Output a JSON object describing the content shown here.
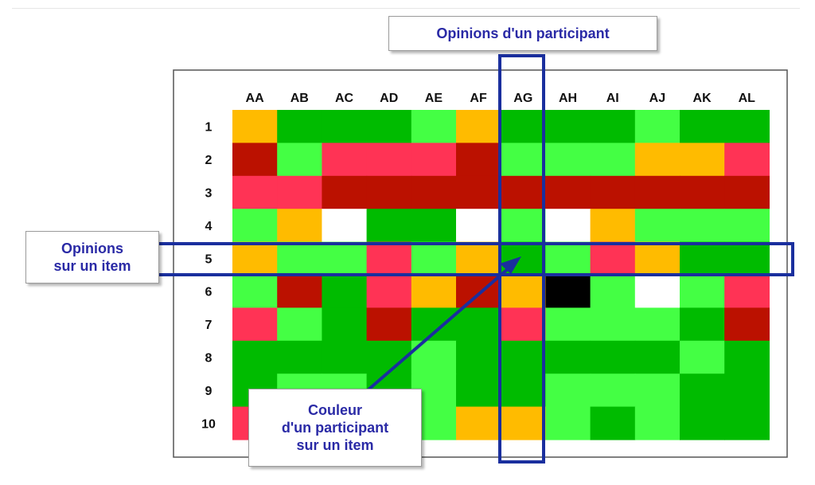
{
  "columns": [
    "AA",
    "AB",
    "AC",
    "AD",
    "AE",
    "AF",
    "AG",
    "AH",
    "AI",
    "AJ",
    "AK",
    "AL"
  ],
  "rows": [
    "1",
    "2",
    "3",
    "4",
    "5",
    "6",
    "7",
    "8",
    "9",
    "10"
  ],
  "legend_colors": {
    "O": "#ffbb00",
    "G": "#00bb00",
    "L": "#44ff44",
    "R": "#ff3355",
    "D": "#bb1100",
    "W": "#ffffff",
    "K": "#000000"
  },
  "grid": [
    "OGGGLOGGGLGG",
    "DLRRRDLLLOOR",
    "RRDDDDDDDDDD",
    "LOWGGWLWOLLL",
    "OLLRLOGLROGG",
    "LDGRODOKLWLR",
    "RLGDGGRLLLGD",
    "GGGGLGGGGGLG",
    "GLLGLGGLLLGG",
    "RLLGLOOLGLGG"
  ],
  "annotations": {
    "participant": "Opinions d'un participant",
    "item": [
      "Opinions",
      "sur un item"
    ],
    "cell": [
      "Couleur",
      "d'un participant",
      "sur un item"
    ]
  },
  "accent_color": "#1a2f9e",
  "frame_color": "#555555"
}
